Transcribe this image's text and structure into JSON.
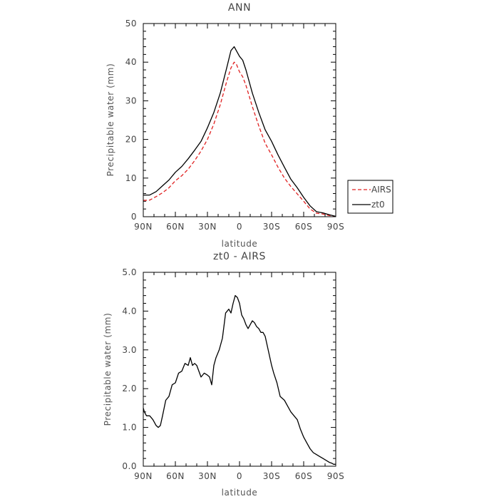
{
  "chart_data": [
    {
      "type": "line",
      "title": "ANN",
      "xlabel": "latitude",
      "ylabel": "Precipitable water (mm)",
      "xlim": [
        90,
        -90
      ],
      "ylim": [
        0,
        50
      ],
      "x_tick_values": [
        90,
        60,
        30,
        0,
        -30,
        -60,
        -90
      ],
      "x_tick_labels": [
        "90N",
        "60N",
        "30N",
        "0",
        "30S",
        "60S",
        "90S"
      ],
      "y_tick_values": [
        0,
        10,
        20,
        30,
        40,
        50
      ],
      "y_tick_labels": [
        "0",
        "10",
        "20",
        "30",
        "40",
        "50"
      ],
      "legend": {
        "position": "right",
        "entries": [
          {
            "label": "AIRS",
            "color": "#e02020",
            "style": "dashed"
          },
          {
            "label": "zt0",
            "color": "#000000",
            "style": "solid"
          }
        ]
      },
      "series": [
        {
          "name": "AIRS",
          "color": "#e02020",
          "style": "dashed",
          "x": [
            90,
            84,
            78,
            72,
            66,
            60,
            54,
            48,
            42,
            36,
            30,
            24,
            18,
            12,
            8,
            5,
            3,
            0,
            -3,
            -6,
            -12,
            -18,
            -24,
            -30,
            -36,
            -42,
            -48,
            -54,
            -60,
            -66,
            -72,
            -78,
            -84,
            -90
          ],
          "y": [
            4.2,
            4.3,
            5.2,
            6.2,
            7.5,
            9.3,
            10.6,
            12.3,
            14.5,
            17.0,
            20.0,
            24.0,
            29.0,
            35.0,
            38.5,
            40.0,
            39.5,
            37.5,
            36.2,
            34.0,
            28.5,
            23.5,
            19.0,
            16.0,
            12.8,
            10.0,
            7.8,
            5.9,
            4.0,
            2.0,
            0.9,
            0.7,
            0.3,
            0.05
          ]
        },
        {
          "name": "zt0",
          "color": "#000000",
          "style": "solid",
          "x": [
            90,
            84,
            78,
            72,
            66,
            60,
            54,
            48,
            42,
            36,
            30,
            24,
            18,
            12,
            8,
            5,
            3,
            0,
            -3,
            -6,
            -12,
            -18,
            -24,
            -30,
            -36,
            -42,
            -48,
            -54,
            -60,
            -66,
            -72,
            -78,
            -84,
            -90
          ],
          "y": [
            5.6,
            5.6,
            6.5,
            8.0,
            9.5,
            11.5,
            13.0,
            15.0,
            17.2,
            19.5,
            23.0,
            27.0,
            32.0,
            38.5,
            43.0,
            44.0,
            43.0,
            41.5,
            40.5,
            38.0,
            32.0,
            27.0,
            22.5,
            19.5,
            16.0,
            12.8,
            9.7,
            7.5,
            5.0,
            2.8,
            1.3,
            1.0,
            0.5,
            0.1
          ]
        }
      ]
    },
    {
      "type": "line",
      "title": "zt0 - AIRS",
      "xlabel": "latitude",
      "ylabel": "Precipitable water (mm)",
      "xlim": [
        90,
        -90
      ],
      "ylim": [
        0,
        5
      ],
      "x_tick_values": [
        90,
        60,
        30,
        0,
        -30,
        -60,
        -90
      ],
      "x_tick_labels": [
        "90N",
        "60N",
        "30N",
        "0",
        "30S",
        "60S",
        "90S"
      ],
      "y_tick_values": [
        0,
        1,
        2,
        3,
        4,
        5
      ],
      "y_tick_labels": [
        "0.0",
        "1.0",
        "2.0",
        "3.0",
        "4.0",
        "5.0"
      ],
      "series": [
        {
          "color": "#000000",
          "style": "solid",
          "x": [
            90,
            89,
            87,
            84,
            81,
            78,
            76,
            74,
            72,
            69,
            66,
            63,
            60,
            57,
            54,
            51,
            48,
            46,
            44,
            42,
            40,
            36,
            33,
            30,
            28,
            26,
            24,
            22,
            19,
            16,
            13,
            10,
            8,
            6,
            4,
            2,
            0,
            -2,
            -4,
            -6,
            -8,
            -10,
            -12,
            -14,
            -16,
            -18,
            -20,
            -22,
            -24,
            -26,
            -28,
            -30,
            -32,
            -35,
            -38,
            -42,
            -45,
            -48,
            -51,
            -54,
            -57,
            -60,
            -63,
            -66,
            -69,
            -72,
            -75,
            -78,
            -81,
            -84,
            -86,
            -88,
            -90
          ],
          "y": [
            1.5,
            1.4,
            1.3,
            1.3,
            1.2,
            1.05,
            1.0,
            1.05,
            1.3,
            1.7,
            1.8,
            2.1,
            2.15,
            2.4,
            2.45,
            2.65,
            2.6,
            2.8,
            2.6,
            2.65,
            2.6,
            2.3,
            2.4,
            2.35,
            2.3,
            2.1,
            2.6,
            2.8,
            3.0,
            3.3,
            3.95,
            4.05,
            3.95,
            4.2,
            4.4,
            4.35,
            4.2,
            3.9,
            3.8,
            3.65,
            3.55,
            3.65,
            3.75,
            3.7,
            3.6,
            3.55,
            3.45,
            3.45,
            3.35,
            3.1,
            2.85,
            2.6,
            2.4,
            2.15,
            1.8,
            1.7,
            1.55,
            1.4,
            1.3,
            1.2,
            0.95,
            0.75,
            0.6,
            0.45,
            0.35,
            0.3,
            0.25,
            0.2,
            0.15,
            0.1,
            0.08,
            0.05,
            0.05
          ]
        }
      ]
    }
  ]
}
